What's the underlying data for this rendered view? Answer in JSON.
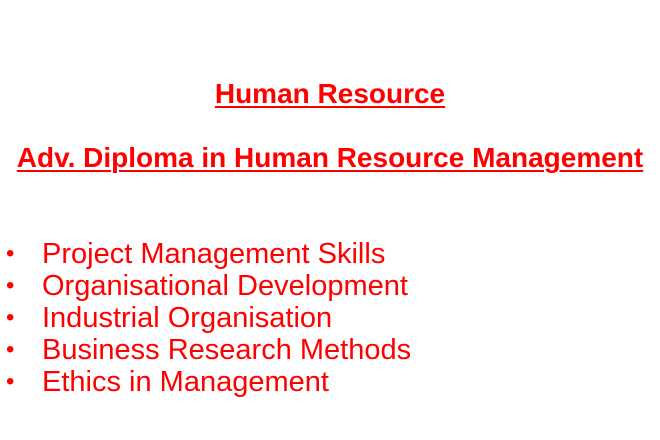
{
  "colors": {
    "text": "#ff0000",
    "background": "#ffffff"
  },
  "slide": {
    "title": "Human Resource",
    "subtitle": "Adv. Diploma in Human Resource Management",
    "bullet_glyph": "•",
    "bullets": [
      "Project Management Skills",
      "Organisational Development",
      "Industrial Organisation",
      "Business Research Methods",
      "Ethics in Management"
    ]
  }
}
